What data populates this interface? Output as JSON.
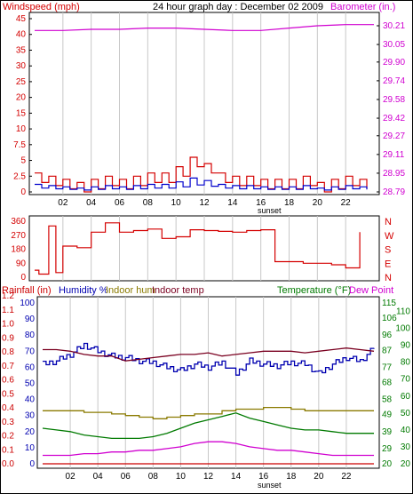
{
  "title": "24 hour graph day : December 02 2009",
  "x_ticks": [
    "02",
    "04",
    "06",
    "08",
    "10",
    "12",
    "14",
    "16",
    "18",
    "20",
    "22"
  ],
  "x_note": "sunset",
  "colors": {
    "wind_gust": "#d40000",
    "wind_avg": "#0000cc",
    "barometer": "#d000d0",
    "direction": "#d40000",
    "rain": "#cc0000",
    "humidity": "#0000b0",
    "indoor_hum": "#8a7a00",
    "indoor_temp": "#7a0020",
    "temperature": "#007a00",
    "dew_point": "#d000d0",
    "grid": "#c8c8c8",
    "axis": "#000000"
  },
  "top_chart": {
    "left_label": "Windspeed (mph)",
    "right_label": "Barometer (in.)",
    "left_ticks": [
      "0",
      "2.5",
      "5",
      "7.5",
      "10",
      "15",
      "20",
      "25",
      "30",
      "35",
      "40",
      "45"
    ],
    "right_ticks": [
      "28.79",
      "28.95",
      "29.11",
      "29.27",
      "29.42",
      "29.58",
      "29.74",
      "29.90",
      "30.05",
      "30.21"
    ]
  },
  "mid_chart": {
    "left_ticks": [
      "0",
      "90",
      "180",
      "270",
      "360"
    ],
    "right_ticks": [
      "N",
      "E",
      "S",
      "W",
      "N"
    ]
  },
  "bottom_chart": {
    "rain_label": "Rainfall (in)",
    "humidity_label": "Humidity %",
    "indoor_hum_label": "Indoor hum",
    "indoor_temp_label": "Indoor temp",
    "temp_label": "Temperature (°F)",
    "dew_label": "Dew Point",
    "rain_ticks": [
      "0.0",
      "0.1",
      "0.2",
      "0.3",
      "0.4",
      "0.5",
      "0.6",
      "0.7",
      "0.8",
      "0.9",
      "1.0",
      "1.1",
      "1.2"
    ],
    "hum_ticks": [
      "0",
      "10",
      "20",
      "30",
      "40",
      "50",
      "60",
      "70",
      "80",
      "90",
      "100"
    ],
    "temp_ticks_a": [
      "20",
      "29",
      "39",
      "49",
      "58",
      "68",
      "77",
      "87",
      "96",
      "106",
      "115"
    ],
    "temp_ticks_b": [
      "20",
      "30",
      "40",
      "50",
      "60",
      "70",
      "80",
      "90",
      "100",
      "110"
    ]
  },
  "chart_data": [
    {
      "type": "line",
      "title": "24 hour graph day : December 02 2009",
      "xlabel": "",
      "x_ticks": [
        "02",
        "04",
        "06",
        "08",
        "10",
        "12",
        "14",
        "16",
        "18",
        "20",
        "22"
      ],
      "ylabel": "Windspeed (mph)",
      "ylim": [
        0,
        45
      ],
      "y2label": "Barometer (in.)",
      "y2lim": [
        28.79,
        30.21
      ],
      "series": [
        {
          "name": "Windspeed (mph)",
          "x": [
            0,
            1,
            2,
            3,
            4,
            5,
            6,
            7,
            8,
            9,
            10,
            11,
            12,
            13,
            14,
            15,
            16,
            17,
            18,
            19,
            20,
            21,
            22,
            23
          ],
          "values": [
            3,
            2.5,
            2,
            1.5,
            2,
            2.5,
            2,
            2.5,
            3,
            3,
            4,
            5.5,
            4.5,
            3,
            2.5,
            2.5,
            2,
            2,
            2,
            2.5,
            1.5,
            2,
            2.5,
            2
          ]
        },
        {
          "name": "Barometer (in.)",
          "x": [
            0,
            2,
            4,
            6,
            8,
            10,
            12,
            14,
            16,
            18,
            20,
            22,
            24
          ],
          "values": [
            30.17,
            30.17,
            30.18,
            30.18,
            30.19,
            30.19,
            30.18,
            30.17,
            30.17,
            30.19,
            30.21,
            30.22,
            30.22
          ]
        }
      ]
    },
    {
      "type": "line",
      "ylim": [
        0,
        360
      ],
      "x": [
        0,
        0.3,
        1,
        1.5,
        2,
        3,
        4,
        5,
        6,
        7,
        8,
        9,
        10,
        11,
        12,
        13,
        14,
        15,
        16,
        17,
        18,
        19,
        20,
        21,
        22,
        23
      ],
      "series": [
        {
          "name": "Wind direction",
          "values": [
            45,
            20,
            330,
            30,
            200,
            190,
            290,
            350,
            290,
            300,
            310,
            250,
            260,
            305,
            300,
            295,
            290,
            300,
            305,
            100,
            100,
            90,
            90,
            80,
            60,
            290
          ]
        }
      ]
    },
    {
      "type": "line",
      "ylim": [
        0,
        100
      ],
      "y2lim": [
        20,
        115
      ],
      "x": [
        0,
        1,
        2,
        3,
        4,
        5,
        6,
        7,
        8,
        9,
        10,
        11,
        12,
        13,
        14,
        15,
        16,
        17,
        18,
        19,
        20,
        21,
        22,
        23,
        24
      ],
      "series": [
        {
          "name": "Humidity %",
          "values": [
            62,
            64,
            68,
            74,
            70,
            67,
            66,
            64,
            63,
            60,
            58,
            62,
            60,
            63,
            56,
            64,
            62,
            61,
            63,
            62,
            56,
            62,
            66,
            64,
            72
          ]
        },
        {
          "name": "Indoor hum",
          "values": [
            33,
            33,
            33,
            32,
            32,
            31,
            30,
            29,
            28,
            29,
            30,
            31,
            31,
            33,
            34,
            34,
            35,
            35,
            34,
            33,
            33,
            33,
            33,
            33,
            33
          ]
        },
        {
          "name": "Indoor temp",
          "values": [
            71,
            71,
            70,
            68,
            67,
            67,
            64,
            65,
            66,
            67,
            68,
            68,
            69,
            67,
            68,
            69,
            70,
            70,
            70,
            69,
            70,
            71,
            72,
            71,
            70
          ]
        },
        {
          "name": "Temperature (°F)",
          "values": [
            41,
            40,
            39,
            37,
            36,
            35,
            35,
            35,
            36,
            38,
            41,
            44,
            46,
            48,
            50,
            47,
            45,
            43,
            41,
            40,
            40,
            39,
            38,
            38,
            38
          ]
        },
        {
          "name": "Dew Point",
          "values": [
            25,
            25,
            25,
            26,
            26,
            27,
            27,
            28,
            28,
            29,
            30,
            32,
            33,
            33,
            32,
            30,
            29,
            28,
            28,
            27,
            26,
            25,
            25,
            25,
            25
          ]
        },
        {
          "name": "Rainfall (in)",
          "values": [
            0,
            0,
            0,
            0,
            0,
            0,
            0,
            0,
            0,
            0,
            0,
            0,
            0,
            0,
            0,
            0,
            0,
            0,
            0,
            0,
            0,
            0,
            0,
            0,
            0
          ]
        }
      ]
    }
  ]
}
